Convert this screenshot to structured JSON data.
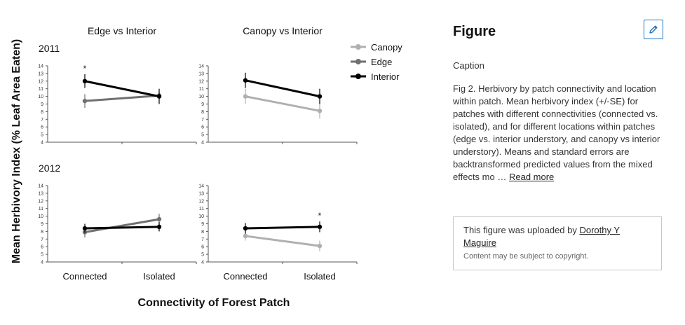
{
  "chart_data": {
    "type": "line",
    "ylabel": "Mean Herbivory Index  (% Leaf Area Eaten)",
    "xlabel": "Connectivity of Forest Patch",
    "categories": [
      "Connected",
      "Isolated"
    ],
    "yticks": [
      "4",
      "5",
      "6",
      "7",
      "8",
      "9",
      "10",
      "11",
      "12",
      "13",
      "14"
    ],
    "ylim": [
      4,
      14
    ],
    "row_labels": [
      "2011",
      "2012"
    ],
    "legend": [
      {
        "name": "Canopy",
        "color": "#b0b0b0"
      },
      {
        "name": "Edge",
        "color": "#707070"
      },
      {
        "name": "Interior",
        "color": "#000000"
      }
    ],
    "panels": [
      {
        "col_title": "Edge vs Interior",
        "row": 0,
        "col": 0,
        "series": [
          {
            "name": "Edge",
            "color": "#707070",
            "values": [
              9.4,
              10.1
            ],
            "se": [
              0.9,
              0.5
            ]
          },
          {
            "name": "Interior",
            "color": "#000000",
            "values": [
              12.0,
              10.0
            ],
            "se": [
              0.9,
              1.0
            ]
          }
        ],
        "star": [
          true,
          false
        ]
      },
      {
        "col_title": "Canopy vs Interior",
        "row": 0,
        "col": 1,
        "series": [
          {
            "name": "Canopy",
            "color": "#b0b0b0",
            "values": [
              10.0,
              8.1
            ],
            "se": [
              1.0,
              1.0
            ]
          },
          {
            "name": "Interior",
            "color": "#000000",
            "values": [
              12.1,
              10.0
            ],
            "se": [
              1.0,
              1.0
            ]
          }
        ],
        "star": [
          false,
          false
        ]
      },
      {
        "row": 1,
        "col": 0,
        "series": [
          {
            "name": "Edge",
            "color": "#707070",
            "values": [
              7.9,
              9.6
            ],
            "se": [
              0.7,
              0.7
            ]
          },
          {
            "name": "Interior",
            "color": "#000000",
            "values": [
              8.4,
              8.6
            ],
            "se": [
              0.6,
              0.6
            ]
          }
        ],
        "star": [
          false,
          false
        ]
      },
      {
        "row": 1,
        "col": 1,
        "series": [
          {
            "name": "Canopy",
            "color": "#b0b0b0",
            "values": [
              7.4,
              6.1
            ],
            "se": [
              0.6,
              0.7
            ]
          },
          {
            "name": "Interior",
            "color": "#000000",
            "values": [
              8.4,
              8.6
            ],
            "se": [
              0.7,
              0.7
            ]
          }
        ],
        "star": [
          false,
          true
        ]
      }
    ]
  },
  "sidebar": {
    "title": "Figure",
    "edit_icon": "pencil-icon",
    "accent_color": "#1a73c8",
    "caption_label": "Caption",
    "caption_text": "Fig 2. Herbivory by patch connectivity and location within patch. Mean herbivory index (+/-SE) for patches with different connectivities (connected vs. isolated), and for different locations within patches (edge vs. interior understory, and canopy vs interior understory). Means and standard errors are backtransformed predicted values from the mixed effects mo",
    "ellipsis": " … ",
    "read_more": "Read more",
    "upload_prefix": "This figure was uploaded by ",
    "uploader": "Dorothy Y Maguire",
    "copyright": "Content may be subject to copyright."
  }
}
